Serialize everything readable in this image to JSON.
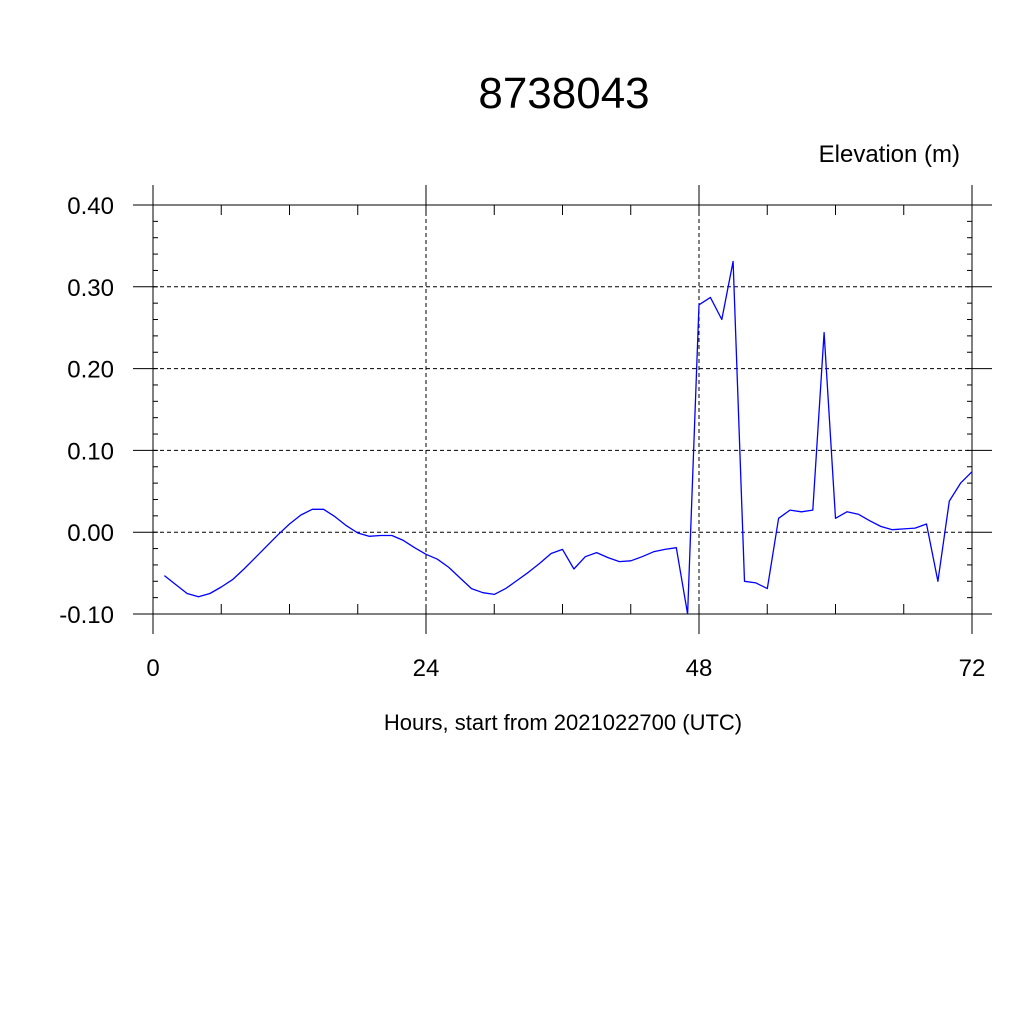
{
  "chart_data": {
    "type": "line",
    "title": "8738043",
    "subtitle": "Elevation (m)",
    "xlabel": "Hours, start from 2021022700 (UTC)",
    "ylabel": "",
    "xlim": [
      0,
      72
    ],
    "ylim": [
      -0.1,
      0.4
    ],
    "x_ticks": [
      0,
      24,
      48,
      72
    ],
    "x_tick_labels": [
      "0",
      "24",
      "48",
      "72"
    ],
    "y_ticks": [
      -0.1,
      0.0,
      0.1,
      0.2,
      0.3,
      0.4
    ],
    "y_tick_labels": [
      "-0.10",
      "0.00",
      "0.10",
      "0.20",
      "0.30",
      "0.40"
    ],
    "grid": true,
    "series": [
      {
        "color": "#0000ff",
        "x": [
          1,
          2,
          3,
          4,
          5,
          6,
          7,
          8,
          9,
          10,
          11,
          12,
          13,
          14,
          15,
          16,
          17,
          18,
          19,
          20,
          21,
          22,
          23,
          24,
          25,
          26,
          27,
          28,
          29,
          30,
          31,
          32,
          33,
          34,
          35,
          36,
          37,
          38,
          39,
          40,
          41,
          42,
          43,
          44,
          45,
          46,
          47,
          48,
          49,
          50,
          51,
          52,
          53,
          54,
          55,
          56,
          57,
          58,
          59,
          60,
          61,
          62,
          63,
          64,
          65,
          66,
          67,
          68,
          69,
          70,
          71,
          72
        ],
        "y": [
          -0.053,
          -0.064,
          -0.075,
          -0.079,
          -0.075,
          -0.067,
          -0.058,
          -0.045,
          -0.031,
          -0.017,
          -0.003,
          0.01,
          0.021,
          0.028,
          0.028,
          0.019,
          0.008,
          -0.001,
          -0.005,
          -0.004,
          -0.004,
          -0.01,
          -0.019,
          -0.027,
          -0.033,
          -0.043,
          -0.056,
          -0.069,
          -0.074,
          -0.076,
          -0.069,
          -0.059,
          -0.049,
          -0.038,
          -0.026,
          -0.021,
          -0.045,
          -0.03,
          -0.025,
          -0.031,
          -0.036,
          -0.035,
          -0.03,
          -0.024,
          -0.021,
          -0.019,
          -0.1,
          0.278,
          0.287,
          0.26,
          0.331,
          -0.06,
          -0.062,
          -0.069,
          0.017,
          0.027,
          0.025,
          0.027,
          0.244,
          0.017,
          0.025,
          0.022,
          0.014,
          0.007,
          0.003,
          0.004,
          0.005,
          0.01,
          -0.06,
          0.038,
          0.06,
          0.074
        ]
      }
    ]
  }
}
